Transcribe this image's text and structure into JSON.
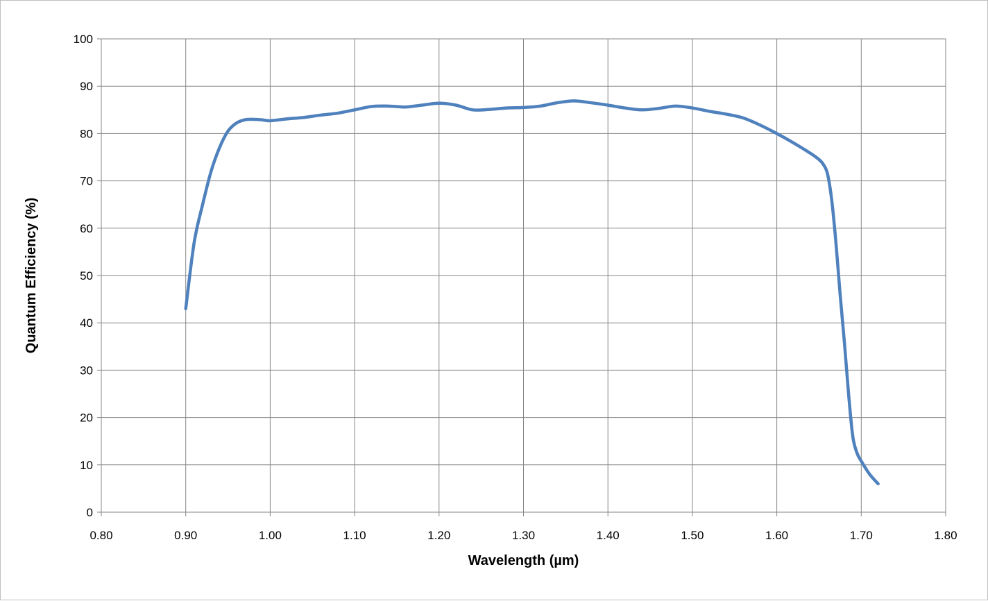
{
  "chart_data": {
    "type": "line",
    "title": "",
    "xlabel": "Wavelength (µm)",
    "ylabel": "Quantum Efficiency  (%)",
    "xlim": [
      0.8,
      1.8
    ],
    "ylim": [
      0,
      100
    ],
    "x_ticks": [
      "0.80",
      "0.90",
      "1.00",
      "1.10",
      "1.20",
      "1.30",
      "1.40",
      "1.50",
      "1.60",
      "1.70",
      "1.80"
    ],
    "y_ticks": [
      "0",
      "10",
      "20",
      "30",
      "40",
      "50",
      "60",
      "70",
      "80",
      "90",
      "100"
    ],
    "grid": true,
    "legend": "none",
    "series": [
      {
        "color": "#4f81bd",
        "x": [
          0.9,
          0.91,
          0.92,
          0.93,
          0.94,
          0.95,
          0.96,
          0.97,
          0.98,
          0.99,
          1.0,
          1.02,
          1.04,
          1.06,
          1.08,
          1.1,
          1.12,
          1.14,
          1.16,
          1.18,
          1.2,
          1.22,
          1.24,
          1.26,
          1.28,
          1.3,
          1.32,
          1.34,
          1.36,
          1.38,
          1.4,
          1.42,
          1.44,
          1.46,
          1.48,
          1.5,
          1.52,
          1.54,
          1.56,
          1.58,
          1.6,
          1.62,
          1.64,
          1.65,
          1.655,
          1.66,
          1.665,
          1.67,
          1.675,
          1.68,
          1.685,
          1.69,
          1.695,
          1.7,
          1.71,
          1.72
        ],
        "y": [
          43,
          57,
          65,
          72,
          77,
          80.5,
          82.2,
          82.9,
          83.0,
          82.9,
          82.7,
          83.1,
          83.4,
          83.9,
          84.3,
          85.0,
          85.7,
          85.8,
          85.6,
          86.0,
          86.4,
          86.0,
          85.0,
          85.1,
          85.4,
          85.5,
          85.8,
          86.5,
          86.9,
          86.5,
          86.0,
          85.4,
          85.0,
          85.3,
          85.8,
          85.4,
          84.7,
          84.1,
          83.3,
          81.8,
          80.0,
          78.0,
          75.8,
          74.5,
          73.5,
          71.5,
          66.0,
          57.0,
          46.0,
          36.0,
          25.0,
          16.0,
          12.5,
          10.8,
          8.0,
          6.0
        ]
      }
    ]
  }
}
